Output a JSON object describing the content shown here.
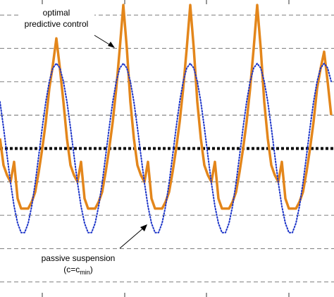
{
  "chart_data": {
    "type": "line",
    "annotations": [
      {
        "lines": [
          "optimal",
          "predictive control"
        ]
      },
      {
        "lines": [
          "passive suspension"
        ],
        "formula": [
          "(c=c",
          "min",
          ")"
        ]
      }
    ],
    "x": [
      0,
      5,
      10,
      15,
      20,
      25,
      30,
      35,
      40,
      45,
      50,
      55,
      60,
      65,
      70,
      75,
      80,
      85,
      90,
      95,
      100,
      105,
      110,
      115,
      120,
      125,
      130,
      135,
      140,
      145,
      150,
      155,
      160,
      165,
      170,
      175,
      180,
      185,
      190,
      195,
      200,
      205,
      210,
      215,
      220,
      225,
      230,
      235,
      240,
      245,
      250,
      255,
      260,
      265,
      270,
      275,
      280,
      285,
      290,
      295,
      300,
      305,
      310,
      315,
      320,
      325,
      330,
      335,
      340,
      345,
      350,
      355,
      360,
      365,
      370,
      375,
      380,
      385,
      390,
      395,
      400,
      405,
      410,
      415,
      420,
      425,
      430,
      435,
      440,
      445,
      450,
      455,
      460,
      465,
      470
    ],
    "series": [
      {
        "color": "#e3861b",
        "style": "solid",
        "values": [
          0.3,
          -0.5,
          -0.8,
          -1.0,
          -0.4,
          -1.5,
          -1.8,
          -1.8,
          -1.8,
          -1.6,
          -1.3,
          -0.7,
          0.0,
          0.8,
          1.8,
          2.5,
          3.3,
          2.4,
          1.4,
          0.3,
          -0.5,
          -0.8,
          -1.0,
          -0.4,
          -1.5,
          -1.8,
          -1.8,
          -1.8,
          -1.6,
          -1.3,
          -0.7,
          0.0,
          0.8,
          1.8,
          3.0,
          4.3,
          3.0,
          1.4,
          0.3,
          -0.5,
          -0.8,
          -1.0,
          -0.4,
          -1.5,
          -1.8,
          -1.8,
          -1.8,
          -1.6,
          -1.3,
          -0.7,
          0.0,
          0.8,
          1.8,
          3.0,
          4.3,
          3.0,
          1.4,
          0.3,
          -0.5,
          -0.8,
          -1.0,
          -0.4,
          -1.5,
          -1.8,
          -1.8,
          -1.8,
          -1.6,
          -1.3,
          -0.7,
          0.0,
          0.8,
          1.8,
          3.0,
          4.3,
          3.0,
          1.4,
          0.3,
          -0.5,
          -0.8,
          -1.0,
          -0.4,
          -1.5,
          -1.8,
          -1.8,
          -1.8,
          -1.6,
          -1.3,
          -0.7,
          0.0,
          0.8,
          1.8,
          2.4,
          2.9,
          2.0,
          1.0
        ]
      },
      {
        "color": "#1c34c8",
        "style": "dotted",
        "values": [
          1.4,
          0.63,
          -0.21,
          -1.03,
          -1.73,
          -2.24,
          -2.52,
          -2.52,
          -2.24,
          -1.73,
          -1.03,
          -0.21,
          0.63,
          1.4,
          2.01,
          2.41,
          2.55,
          2.41,
          2.01,
          1.4,
          0.63,
          -0.21,
          -1.03,
          -1.73,
          -2.24,
          -2.52,
          -2.52,
          -2.24,
          -1.73,
          -1.03,
          -0.21,
          0.63,
          1.4,
          2.01,
          2.41,
          2.55,
          2.41,
          2.01,
          1.4,
          0.63,
          -0.21,
          -1.03,
          -1.73,
          -2.24,
          -2.52,
          -2.52,
          -2.24,
          -1.73,
          -1.03,
          -0.21,
          0.63,
          1.4,
          2.01,
          2.41,
          2.55,
          2.41,
          2.01,
          1.4,
          0.63,
          -0.21,
          -1.03,
          -1.73,
          -2.24,
          -2.52,
          -2.52,
          -2.24,
          -1.73,
          -1.03,
          -0.21,
          0.63,
          1.4,
          2.01,
          2.41,
          2.55,
          2.41,
          2.01,
          1.4,
          0.63,
          -0.21,
          -1.03,
          -1.73,
          -2.24,
          -2.52,
          -2.52,
          -2.24,
          -1.73,
          -1.03,
          -0.21,
          0.63,
          1.4,
          2.01,
          2.41,
          2.55,
          2.41,
          2.01
        ]
      }
    ],
    "hline": {
      "value": 0,
      "color": "#000000"
    },
    "xlim": [
      0,
      474
    ],
    "xticks": [
      60,
      177,
      293,
      410
    ],
    "ylim": [
      -4.45,
      4.45
    ],
    "yticks": [
      -4,
      -3,
      -2,
      -1,
      1,
      2,
      3,
      4
    ],
    "grid": true
  }
}
